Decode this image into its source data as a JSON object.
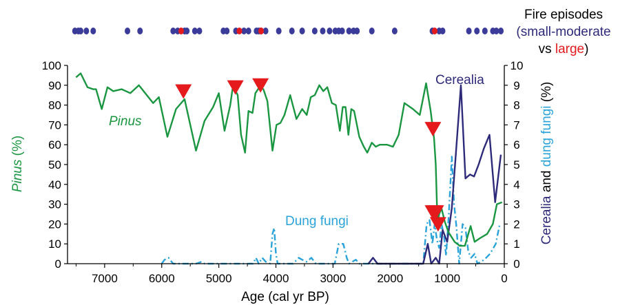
{
  "fire_legend": {
    "title": "Fire episodes",
    "open_paren": "(",
    "small_label": "small-moderate",
    "vs_label": "vs",
    "large_label": "large",
    "close_paren": ")"
  },
  "chart_data": {
    "type": "line",
    "xlabel": "Age (cal yr BP)",
    "ylabel_left_italic": "Pinus",
    "ylabel_left_rest": " (%)",
    "ylabel_right_part1": "Cerealia",
    "ylabel_right_part2": " and ",
    "ylabel_right_part3": "dung fungi",
    "ylabel_right_part4": " (%)",
    "xlim": [
      7650,
      0
    ],
    "ylim_left": [
      0,
      100
    ],
    "ylim_right": [
      0,
      10
    ],
    "x_ticks": [
      7000,
      6000,
      5000,
      4000,
      3000,
      2000,
      1000,
      0
    ],
    "y_left_ticks": [
      0,
      10,
      20,
      30,
      40,
      50,
      60,
      70,
      80,
      90,
      100
    ],
    "y_right_ticks": [
      0,
      1,
      2,
      3,
      4,
      5,
      6,
      7,
      8,
      9,
      10
    ],
    "colors": {
      "pinus": "#1a9641",
      "cerealia": "#2e2a7a",
      "dung_fungi": "#29a3d9",
      "fire_small": "#3b3b9a",
      "fire_large": "#e41a1c",
      "marker": "#e41a1c"
    },
    "series_labels": {
      "pinus": "Pinus",
      "cerealia": "Cerealia",
      "dung_fungi": "Dung fungi"
    },
    "series": [
      {
        "name": "Pinus",
        "axis": "left",
        "points": [
          [
            7500,
            94
          ],
          [
            7420,
            96
          ],
          [
            7300,
            89
          ],
          [
            7200,
            88
          ],
          [
            7150,
            88
          ],
          [
            7050,
            78
          ],
          [
            6950,
            89
          ],
          [
            6850,
            87
          ],
          [
            6700,
            88
          ],
          [
            6550,
            86
          ],
          [
            6400,
            90
          ],
          [
            6150,
            81
          ],
          [
            6050,
            84
          ],
          [
            5900,
            64
          ],
          [
            5750,
            78
          ],
          [
            5600,
            83
          ],
          [
            5400,
            57
          ],
          [
            5250,
            72
          ],
          [
            5100,
            79
          ],
          [
            5000,
            86
          ],
          [
            4900,
            67
          ],
          [
            4800,
            80
          ],
          [
            4750,
            90
          ],
          [
            4670,
            85
          ],
          [
            4610,
            65
          ],
          [
            4540,
            56
          ],
          [
            4480,
            77
          ],
          [
            4410,
            76
          ],
          [
            4360,
            86
          ],
          [
            4290,
            89
          ],
          [
            4220,
            88
          ],
          [
            4150,
            82
          ],
          [
            4060,
            57
          ],
          [
            3990,
            70
          ],
          [
            3920,
            71
          ],
          [
            3850,
            75
          ],
          [
            3750,
            85
          ],
          [
            3640,
            73
          ],
          [
            3540,
            78
          ],
          [
            3460,
            75
          ],
          [
            3390,
            84
          ],
          [
            3320,
            85
          ],
          [
            3240,
            90
          ],
          [
            3170,
            87
          ],
          [
            3100,
            89
          ],
          [
            3020,
            81
          ],
          [
            2950,
            80
          ],
          [
            2880,
            67
          ],
          [
            2830,
            79
          ],
          [
            2780,
            79
          ],
          [
            2730,
            65
          ],
          [
            2680,
            78
          ],
          [
            2630,
            77
          ],
          [
            2540,
            64
          ],
          [
            2460,
            59
          ],
          [
            2400,
            56
          ],
          [
            2320,
            61
          ],
          [
            2250,
            59
          ],
          [
            2180,
            60
          ],
          [
            2050,
            60
          ],
          [
            1950,
            59
          ],
          [
            1850,
            65
          ],
          [
            1750,
            81
          ],
          [
            1600,
            78
          ],
          [
            1480,
            75
          ],
          [
            1370,
            91
          ],
          [
            1290,
            77
          ],
          [
            1230,
            63
          ],
          [
            1200,
            50
          ],
          [
            1170,
            20
          ],
          [
            1140,
            25
          ],
          [
            1100,
            28
          ],
          [
            1040,
            21
          ],
          [
            980,
            16
          ],
          [
            870,
            11
          ],
          [
            780,
            9
          ],
          [
            690,
            9
          ],
          [
            590,
            19
          ],
          [
            520,
            11
          ],
          [
            420,
            13
          ],
          [
            300,
            15
          ],
          [
            200,
            20
          ],
          [
            130,
            30
          ],
          [
            40,
            31
          ]
        ]
      },
      {
        "name": "Cerealia",
        "axis": "right",
        "points": [
          [
            2380,
            0
          ],
          [
            2300,
            0.3
          ],
          [
            2220,
            0
          ],
          [
            1420,
            0
          ],
          [
            1340,
            1
          ],
          [
            1280,
            0
          ],
          [
            1200,
            0.3
          ],
          [
            1140,
            0
          ],
          [
            1080,
            1.7
          ],
          [
            1000,
            1.1
          ],
          [
            920,
            2.8
          ],
          [
            850,
            5.5
          ],
          [
            760,
            9
          ],
          [
            680,
            4.3
          ],
          [
            600,
            4.5
          ],
          [
            530,
            4.4
          ],
          [
            450,
            5
          ],
          [
            360,
            5.8
          ],
          [
            260,
            6.5
          ],
          [
            160,
            3.1
          ],
          [
            60,
            5.5
          ]
        ]
      },
      {
        "name": "Dung fungi",
        "axis": "right",
        "points": [
          [
            6000,
            0
          ],
          [
            5950,
            0.2
          ],
          [
            5880,
            0.3
          ],
          [
            5800,
            0
          ],
          [
            5400,
            0
          ],
          [
            5300,
            0.1
          ],
          [
            5250,
            0
          ],
          [
            4400,
            0
          ],
          [
            4350,
            0.3
          ],
          [
            4300,
            0
          ],
          [
            4240,
            0.3
          ],
          [
            4180,
            0.1
          ],
          [
            4100,
            0
          ],
          [
            4060,
            1.5
          ],
          [
            4030,
            1.8
          ],
          [
            4000,
            0.5
          ],
          [
            3970,
            0
          ],
          [
            3700,
            0
          ],
          [
            3600,
            0.3
          ],
          [
            3540,
            0.2
          ],
          [
            3460,
            0.1
          ],
          [
            3380,
            0.3
          ],
          [
            3300,
            0
          ],
          [
            2970,
            0
          ],
          [
            2900,
            1
          ],
          [
            2820,
            1
          ],
          [
            2760,
            0.3
          ],
          [
            2720,
            0
          ],
          [
            2600,
            0.2
          ],
          [
            2540,
            0
          ],
          [
            1420,
            0
          ],
          [
            1360,
            2
          ],
          [
            1310,
            2.2
          ],
          [
            1260,
            1
          ],
          [
            1220,
            2
          ],
          [
            1180,
            1.2
          ],
          [
            1140,
            0.8
          ],
          [
            1100,
            2
          ],
          [
            1060,
            1.5
          ],
          [
            1020,
            0.4
          ],
          [
            970,
            2.6
          ],
          [
            920,
            5.4
          ],
          [
            880,
            3
          ],
          [
            840,
            1.9
          ],
          [
            790,
            0
          ],
          [
            730,
            2
          ],
          [
            680,
            1.8
          ],
          [
            630,
            0.6
          ],
          [
            580,
            0.3
          ],
          [
            520,
            0.5
          ],
          [
            470,
            0
          ],
          [
            350,
            0.2
          ],
          [
            250,
            0.5
          ],
          [
            150,
            1
          ],
          [
            80,
            2
          ]
        ]
      }
    ],
    "markers": {
      "type": "peak_triangle",
      "points": [
        [
          5620,
          87
        ],
        [
          4710,
          89
        ],
        [
          4270,
          90
        ],
        [
          1250,
          68
        ],
        [
          1250,
          26
        ],
        [
          1200,
          26
        ],
        [
          1160,
          20
        ]
      ]
    },
    "fire_episodes": {
      "small_moderate": [
        7520,
        7460,
        7420,
        7320,
        7200,
        6600,
        6380,
        5800,
        5720,
        5600,
        5560,
        5420,
        5340,
        4920,
        4860,
        4700,
        4560,
        4480,
        4340,
        4300,
        4260,
        4180,
        3950,
        3720,
        3540,
        3320,
        3180,
        3060,
        2960,
        2900,
        2840,
        2720,
        2640,
        2580,
        2320,
        1920,
        1260,
        1140,
        1080,
        620,
        480,
        340,
        200,
        140,
        60
      ],
      "large": [
        5660,
        4640,
        4260,
        1220
      ]
    }
  }
}
